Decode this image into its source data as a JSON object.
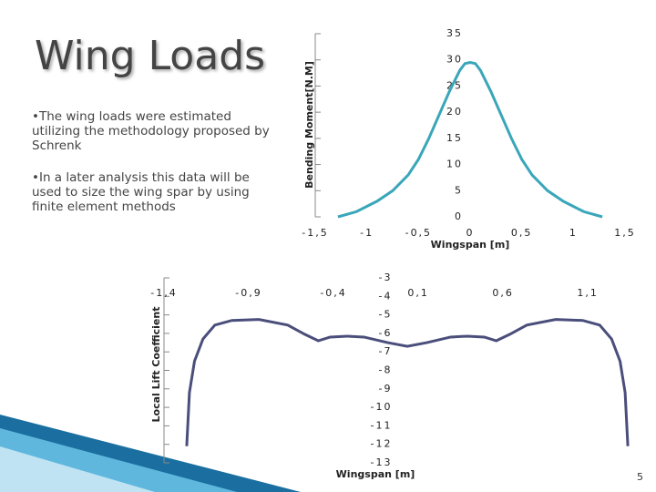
{
  "slide": {
    "title": "Wing Loads",
    "bullets": [
      "•The wing loads were estimated utilizing the methodology proposed by Schrenk",
      "•In a later analysis this data will be used to size the wing spar by using finite element methods"
    ],
    "page_number": "5"
  },
  "chart_data": [
    {
      "type": "line",
      "x_label": "Wingspan [m]",
      "y_label": "Bending Moment[N.M]",
      "color": "#3aa6b9",
      "x": [
        -1.28,
        -1.1,
        -0.9,
        -0.75,
        -0.6,
        -0.5,
        -0.4,
        -0.3,
        -0.2,
        -0.1,
        -0.05,
        0,
        0.05,
        0.1,
        0.2,
        0.3,
        0.4,
        0.5,
        0.6,
        0.75,
        0.9,
        1.1,
        1.28
      ],
      "values": [
        0,
        1,
        3,
        5,
        8,
        11,
        15,
        19.5,
        24,
        28,
        29.3,
        29.5,
        29.3,
        28,
        24,
        19.5,
        15,
        11,
        8,
        5,
        3,
        1,
        0
      ],
      "xlim": [
        -1.5,
        1.5
      ],
      "ylim": [
        0,
        35
      ],
      "xticks": [
        {
          "value": -1.5,
          "label": "-1,5"
        },
        -1,
        {
          "value": -0.5,
          "label": "-0,5"
        },
        0,
        {
          "value": 0.5,
          "label": "0,5"
        },
        1,
        {
          "value": 1.5,
          "label": "1,5"
        }
      ],
      "yticks": [
        0,
        5,
        10,
        15,
        20,
        25,
        30,
        35
      ]
    },
    {
      "type": "line",
      "x_label": "Wingspan [m]",
      "y_label": "Local Lift Coefficient",
      "color": "#4a4e7a",
      "x": [
        -1.266,
        -1.25,
        -1.22,
        -1.17,
        -1.1,
        -1.0,
        -0.84,
        -0.67,
        -0.57,
        -0.49,
        -0.42,
        -0.32,
        -0.22,
        -0.08,
        0.035,
        0.15,
        0.29,
        0.39,
        0.49,
        0.56,
        0.64,
        0.74,
        0.91,
        1.07,
        1.17,
        1.24,
        1.29,
        1.32,
        1.336
      ],
      "values": [
        -12.1,
        -9.2,
        -7.5,
        -6.3,
        -5.55,
        -5.3,
        -5.25,
        -5.55,
        -6.05,
        -6.4,
        -6.2,
        -6.15,
        -6.2,
        -6.5,
        -6.7,
        -6.5,
        -6.2,
        -6.15,
        -6.2,
        -6.4,
        -6.05,
        -5.55,
        -5.25,
        -5.3,
        -5.55,
        -6.3,
        -7.5,
        -9.2,
        -12.1
      ],
      "xlim": [
        -1.4,
        1.4
      ],
      "ylim": [
        -13,
        -3
      ],
      "xticks": [
        {
          "value": -1.4,
          "label": "-1,4"
        },
        {
          "value": -0.9,
          "label": "-0,9"
        },
        {
          "value": -0.4,
          "label": "-0,4"
        },
        {
          "value": 0.1,
          "label": "0,1"
        },
        {
          "value": 0.6,
          "label": "0,6"
        },
        {
          "value": 1.1,
          "label": "1,1"
        }
      ],
      "yticks": [
        -3,
        -4,
        -5,
        -6,
        -7,
        -8,
        -9,
        -10,
        -11,
        -12,
        -13
      ]
    }
  ]
}
